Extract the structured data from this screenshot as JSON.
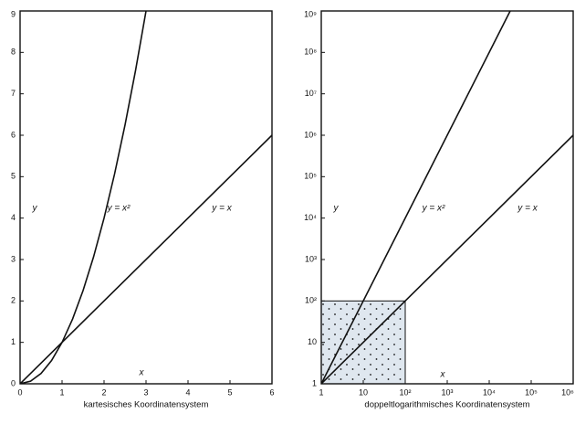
{
  "chart_data": [
    {
      "type": "line",
      "caption": "kartesisches Koordinatensystem",
      "x_label": "x",
      "y_label": "y",
      "xlim": [
        0,
        6
      ],
      "ylim": [
        0,
        9
      ],
      "xticks": [
        0,
        1,
        2,
        3,
        4,
        5,
        6
      ],
      "yticks": [
        0,
        1,
        2,
        3,
        4,
        5,
        6,
        7,
        8,
        9
      ],
      "color": "#111111",
      "series": [
        {
          "name": "y = x²",
          "x": [
            0,
            0.25,
            0.5,
            0.75,
            1,
            1.25,
            1.5,
            1.75,
            2,
            2.25,
            2.5,
            2.75,
            3
          ],
          "values": [
            0,
            0.0625,
            0.25,
            0.5625,
            1,
            1.5625,
            2.25,
            3.0625,
            4,
            5.0625,
            6.25,
            7.5625,
            9
          ]
        },
        {
          "name": "y = x",
          "x": [
            0,
            6
          ],
          "values": [
            0,
            6
          ]
        }
      ]
    },
    {
      "type": "line",
      "caption": "doppeltlogarithmisches Koordinatensystem",
      "x_label": "x",
      "y_label": "y",
      "log_scale": true,
      "xlim": [
        1,
        1000000
      ],
      "ylim": [
        1,
        1000000000
      ],
      "xticks": [
        1,
        10,
        {
          "value": 100,
          "label": "10²"
        },
        {
          "value": 1000,
          "label": "10³"
        },
        {
          "value": 10000,
          "label": "10⁴"
        },
        {
          "value": 100000,
          "label": "10⁵"
        },
        {
          "value": 1000000,
          "label": "10⁶"
        }
      ],
      "yticks": [
        1,
        10,
        {
          "value": 100,
          "label": "10²"
        },
        {
          "value": 1000,
          "label": "10³"
        },
        {
          "value": 10000,
          "label": "10⁴"
        },
        {
          "value": 100000,
          "label": "10⁵"
        },
        {
          "value": 1000000,
          "label": "10⁶"
        },
        {
          "value": 10000000,
          "label": "10⁷"
        },
        {
          "value": 100000000,
          "label": "10⁸"
        },
        {
          "value": 1000000000,
          "label": "10⁹"
        }
      ],
      "color": "#111111",
      "shaded_region": {
        "x": [
          1,
          100
        ],
        "y": [
          1,
          100
        ]
      },
      "series": [
        {
          "name": "y = x²",
          "x": [
            1,
            31623
          ],
          "values": [
            1,
            1000000000
          ]
        },
        {
          "name": "y = x",
          "x": [
            1,
            1000000
          ],
          "values": [
            1,
            1000000
          ]
        }
      ]
    }
  ]
}
